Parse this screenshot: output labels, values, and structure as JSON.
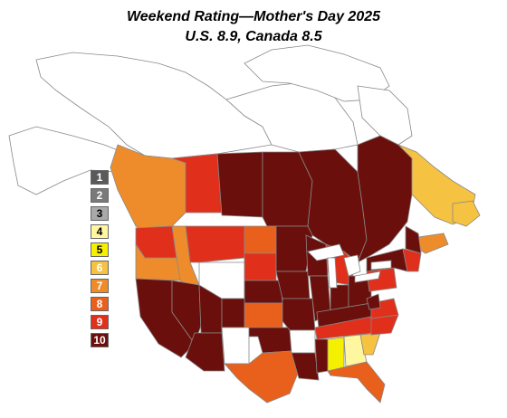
{
  "title": "Weekend Rating—Mother's Day 2025",
  "subtitle": "U.S. 8.9, Canada 8.5",
  "legend": [
    {
      "label": "1",
      "color": "#5a5a5a",
      "text_color": "#ffffff"
    },
    {
      "label": "2",
      "color": "#7a7a7a",
      "text_color": "#ffffff"
    },
    {
      "label": "3",
      "color": "#a9a9a9",
      "text_color": "#000000"
    },
    {
      "label": "4",
      "color": "#fff6a0",
      "text_color": "#000000"
    },
    {
      "label": "5",
      "color": "#f5f000",
      "text_color": "#000000"
    },
    {
      "label": "6",
      "color": "#f5c242",
      "text_color": "#ffffff"
    },
    {
      "label": "7",
      "color": "#ee8c2c",
      "text_color": "#ffffff"
    },
    {
      "label": "8",
      "color": "#e8601c",
      "text_color": "#ffffff"
    },
    {
      "label": "9",
      "color": "#e0301c",
      "text_color": "#ffffff"
    },
    {
      "label": "10",
      "color": "#6b0f0c",
      "text_color": "#ffffff"
    }
  ],
  "colors": {
    "land_unrated": "#ffffff",
    "border": "#888888",
    "background": "#ffffff"
  }
}
